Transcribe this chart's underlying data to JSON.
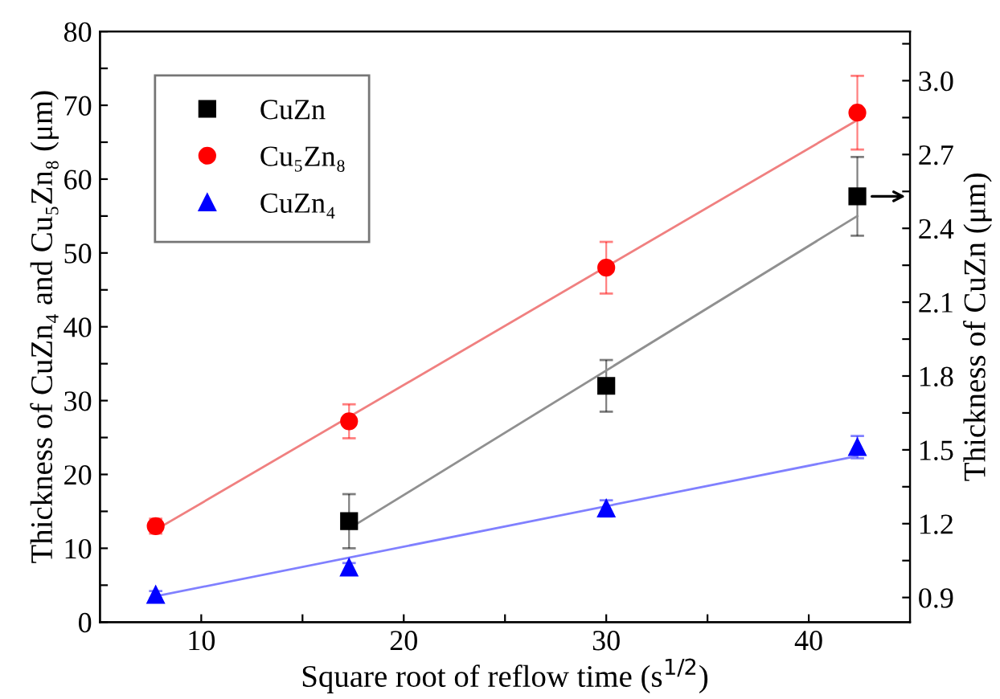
{
  "chart_data": {
    "type": "scatter",
    "xlabel": "Square root of reflow time (s$^{1/2}$)",
    "ylabel": "Thickness of CuZn₄ and Cu₅Zn₈ (μm)",
    "y2label": "Thickness of CuZn (μm)",
    "xlim": [
      5,
      45
    ],
    "xticks": [
      10,
      {
        "value": 15,
        "label": null
      },
      20,
      {
        "value": 25,
        "label": null
      },
      30,
      {
        "value": 35,
        "label": null
      },
      40
    ],
    "ylim": [
      0,
      80
    ],
    "yticks": [
      0,
      {
        "value": 5,
        "label": null
      },
      10,
      {
        "value": 15,
        "label": null
      },
      20,
      {
        "value": 25,
        "label": null
      },
      30,
      {
        "value": 35,
        "label": null
      },
      40,
      {
        "value": 45,
        "label": null
      },
      50,
      {
        "value": 55,
        "label": null
      },
      60,
      {
        "value": 65,
        "label": null
      },
      70,
      {
        "value": 75,
        "label": null
      },
      80
    ],
    "y2lim": [
      0.8,
      3.2
    ],
    "y2ticks": [
      0.9,
      {
        "value": 1.05,
        "label": null
      },
      1.2,
      {
        "value": 1.35,
        "label": null
      },
      1.5,
      {
        "value": 1.65,
        "label": null
      },
      1.8,
      {
        "value": 1.95,
        "label": null
      },
      2.1,
      {
        "value": 2.25,
        "label": null
      },
      2.4,
      {
        "value": 2.55,
        "label": null
      },
      2.7,
      {
        "value": 2.85,
        "label": null
      },
      {
        "value": 3.0,
        "label": "3.0"
      },
      {
        "value": 3.15,
        "label": null
      }
    ],
    "legend": "top left",
    "grid": false,
    "series": [
      {
        "name": "CuZn",
        "color": "#000000",
        "marker": "square",
        "axis": "y2",
        "x": [
          17.3,
          30,
          42.4
        ],
        "values": [
          1.21,
          1.76,
          2.53
        ],
        "errors": [
          0.11,
          0.105,
          0.16
        ]
      },
      {
        "name": "Cu₅Zn₈",
        "color": "#ff0000",
        "marker": "circle",
        "x": [
          7.75,
          17.3,
          30,
          42.4
        ],
        "values": [
          13,
          27.2,
          48,
          69
        ],
        "errors": [
          1,
          2.3,
          3.5,
          5
        ]
      },
      {
        "name": "CuZn₄",
        "color": "#0000ff",
        "marker": "triangle",
        "x": [
          7.75,
          17.3,
          30,
          42.4
        ],
        "values": [
          3.7,
          7.4,
          15.4,
          23.7
        ],
        "errors": [
          0.5,
          0.6,
          1.1,
          1.5
        ]
      },
      {
        "type": "line",
        "color": "#909090",
        "axis": "y2",
        "x": [
          17.3,
          42.4
        ],
        "values": [
          1.18,
          2.45
        ]
      },
      {
        "type": "line",
        "color": "#f08080",
        "x": [
          7.75,
          42.4
        ],
        "values": [
          12.5,
          68
        ]
      },
      {
        "type": "line",
        "color": "#8080ff",
        "x": [
          7.75,
          42.4
        ],
        "values": [
          3.5,
          22.5
        ]
      }
    ]
  }
}
